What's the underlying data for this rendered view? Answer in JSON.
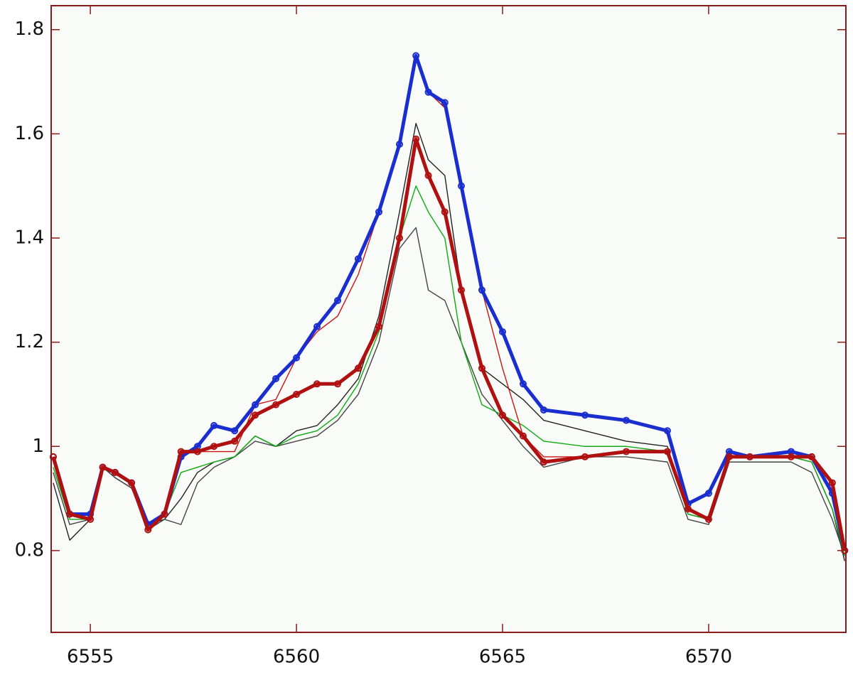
{
  "chart_data": {
    "type": "line",
    "x": [
      6554.1,
      6554.5,
      6555,
      6555.3,
      6555.6,
      6556,
      6556.4,
      6556.8,
      6557.2,
      6557.6,
      6558,
      6558.5,
      6559,
      6559.5,
      6560,
      6560.5,
      6561,
      6561.5,
      6562,
      6562.5,
      6562.9,
      6563.2,
      6563.6,
      6564,
      6564.5,
      6565,
      6565.5,
      6566,
      6567,
      6568,
      6569,
      6569.5,
      6570,
      6570.5,
      6571,
      6572,
      6572.5,
      6573,
      6573.3
    ],
    "series": [
      {
        "color": "#222222",
        "marker": "none",
        "values": [
          0.93,
          0.82,
          0.86,
          0.96,
          0.94,
          0.92,
          0.85,
          0.86,
          0.9,
          0.95,
          0.97,
          0.98,
          1.02,
          1.0,
          1.03,
          1.04,
          1.08,
          1.13,
          1.25,
          1.45,
          1.62,
          1.55,
          1.52,
          1.3,
          1.15,
          1.12,
          1.09,
          1.05,
          1.03,
          1.01,
          1.0,
          0.87,
          0.86,
          0.98,
          0.98,
          0.98,
          0.97,
          0.88,
          0.78
        ]
      },
      {
        "color": "#444444",
        "marker": "none",
        "values": [
          0.95,
          0.85,
          0.86,
          0.96,
          0.94,
          0.92,
          0.84,
          0.86,
          0.85,
          0.93,
          0.96,
          0.98,
          1.01,
          1.0,
          1.01,
          1.02,
          1.05,
          1.1,
          1.2,
          1.38,
          1.42,
          1.3,
          1.28,
          1.2,
          1.1,
          1.05,
          1.0,
          0.96,
          0.98,
          0.98,
          0.97,
          0.86,
          0.85,
          0.97,
          0.97,
          0.97,
          0.95,
          0.86,
          0.79
        ]
      },
      {
        "color": "#11aa11",
        "marker": "none",
        "values": [
          0.96,
          0.86,
          0.86,
          0.96,
          0.95,
          0.93,
          0.84,
          0.87,
          0.95,
          0.96,
          0.97,
          0.98,
          1.02,
          1.0,
          1.02,
          1.03,
          1.06,
          1.12,
          1.22,
          1.4,
          1.5,
          1.45,
          1.4,
          1.2,
          1.08,
          1.06,
          1.04,
          1.01,
          1.0,
          1.0,
          0.99,
          0.87,
          0.86,
          0.98,
          0.98,
          0.98,
          0.97,
          0.88,
          0.79
        ]
      },
      {
        "color": "#cc1111",
        "marker": "none",
        "values": [
          0.98,
          0.87,
          0.86,
          0.96,
          0.95,
          0.93,
          0.84,
          0.87,
          0.99,
          0.99,
          0.99,
          0.99,
          1.08,
          1.09,
          1.17,
          1.22,
          1.25,
          1.33,
          1.45,
          1.58,
          1.75,
          1.68,
          1.65,
          1.5,
          1.3,
          1.15,
          1.02,
          0.98,
          0.98,
          0.99,
          0.99,
          0.88,
          0.86,
          0.98,
          0.98,
          0.98,
          0.98,
          0.93,
          0.8
        ]
      },
      {
        "color": "#1a2ed0",
        "marker": "circle",
        "values": [
          0.98,
          0.87,
          0.87,
          0.96,
          0.95,
          0.93,
          0.85,
          0.87,
          0.98,
          1.0,
          1.04,
          1.03,
          1.08,
          1.13,
          1.17,
          1.23,
          1.28,
          1.36,
          1.45,
          1.58,
          1.75,
          1.68,
          1.66,
          1.5,
          1.3,
          1.22,
          1.12,
          1.07,
          1.06,
          1.05,
          1.03,
          0.89,
          0.91,
          0.99,
          0.98,
          0.99,
          0.98,
          0.91,
          0.8
        ]
      },
      {
        "color": "#b01010",
        "marker": "circle",
        "values": [
          0.98,
          0.87,
          0.86,
          0.96,
          0.95,
          0.93,
          0.84,
          0.87,
          0.99,
          0.99,
          1.0,
          1.01,
          1.06,
          1.08,
          1.1,
          1.12,
          1.12,
          1.15,
          1.23,
          1.4,
          1.59,
          1.52,
          1.45,
          1.3,
          1.15,
          1.06,
          1.02,
          0.97,
          0.98,
          0.99,
          0.99,
          0.88,
          0.86,
          0.98,
          0.98,
          0.98,
          0.98,
          0.93,
          0.8
        ]
      }
    ],
    "xlim": [
      6554.05,
      6573.33
    ],
    "ylim": [
      0.643,
      1.846
    ],
    "xticks": [
      6555,
      6560,
      6565,
      6570
    ],
    "yticks": [
      0.8,
      1,
      1.2,
      1.4,
      1.6,
      1.8
    ]
  }
}
